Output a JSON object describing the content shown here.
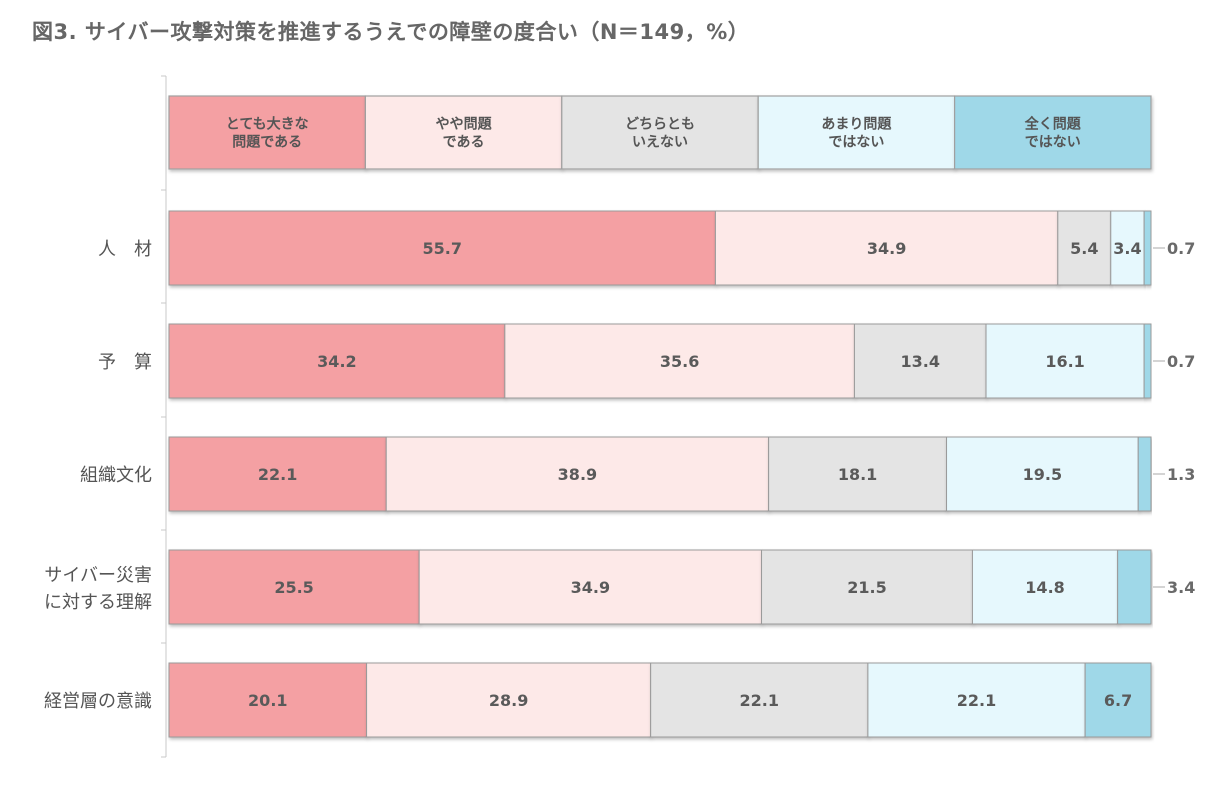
{
  "chart_data": {
    "type": "bar",
    "orientation": "horizontal",
    "stacked": true,
    "percent_stacked": true,
    "title": "図3. サイバー攻撃対策を推進するうえでの障壁の度合い（N＝149，%）",
    "categories": [
      [
        "人　材"
      ],
      [
        "予　算"
      ],
      [
        "組織文化"
      ],
      [
        "サイバー災害",
        "に対する理解"
      ],
      [
        "経営層の意識"
      ]
    ],
    "series": [
      {
        "name": "とても大きな\n問題である",
        "color": "#f4a0a3",
        "values": [
          55.7,
          34.2,
          22.1,
          25.5,
          20.1
        ]
      },
      {
        "name": "やや問題\nである",
        "color": "#fde9e8",
        "values": [
          34.9,
          35.6,
          38.9,
          34.9,
          28.9
        ]
      },
      {
        "name": "どちらとも\nいえない",
        "color": "#e4e4e4",
        "values": [
          5.4,
          13.4,
          18.1,
          21.5,
          22.1
        ]
      },
      {
        "name": "あまり問題\nではない",
        "color": "#e6f8fd",
        "values": [
          3.4,
          16.1,
          19.5,
          14.8,
          22.1
        ]
      },
      {
        "name": "全く問題\nではない",
        "color": "#9fd8e8",
        "values": [
          0.7,
          0.7,
          1.3,
          3.4,
          6.7
        ]
      }
    ],
    "outside_labels": [
      "0.7",
      "0.7",
      "1.3",
      "3.4",
      ""
    ],
    "inside_labels_hidden_for_series": 4,
    "inside_label_exception_rows": [
      4
    ],
    "legend_position": "top",
    "xlim": [
      0,
      100
    ],
    "grid": false
  }
}
